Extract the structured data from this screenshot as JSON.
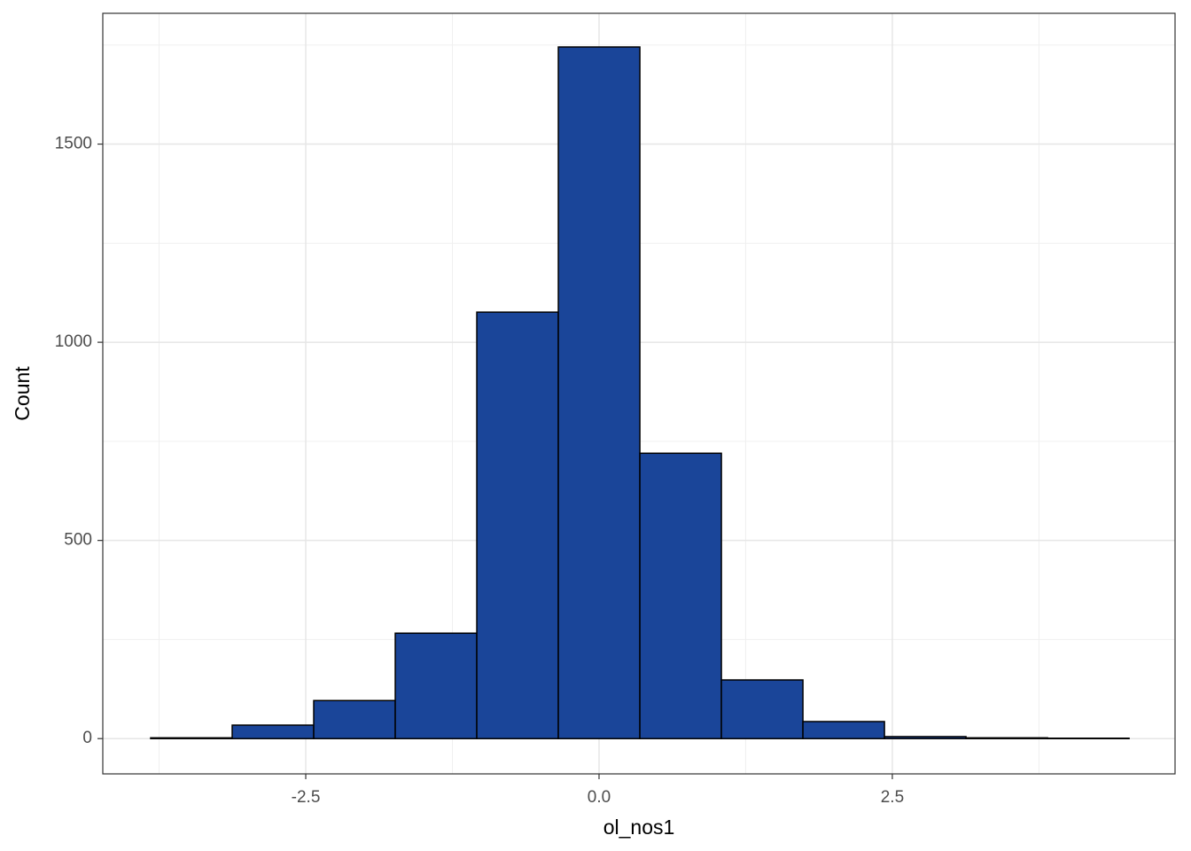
{
  "chart_data": {
    "type": "histogram",
    "x_label": "ol_nos1",
    "y_label": "Count",
    "bins": [
      -3.822,
      -3.127,
      -2.432,
      -1.737,
      -1.042,
      -0.347,
      0.348,
      1.043,
      1.738,
      2.433,
      3.128,
      3.823,
      4.518
    ],
    "values": [
      2,
      34,
      96,
      266,
      1076,
      1745,
      720,
      148,
      43,
      5,
      2,
      1
    ],
    "color": "#1a4599",
    "edge_color": "#000000",
    "xlim": [
      -4.23,
      4.91
    ],
    "ylim": [
      -89,
      1830
    ],
    "xticks": [
      -2.5,
      {
        "value": 0,
        "label": "0.0"
      },
      2.5
    ],
    "yticks": [
      0,
      500,
      1000,
      1500
    ],
    "grid": true
  }
}
